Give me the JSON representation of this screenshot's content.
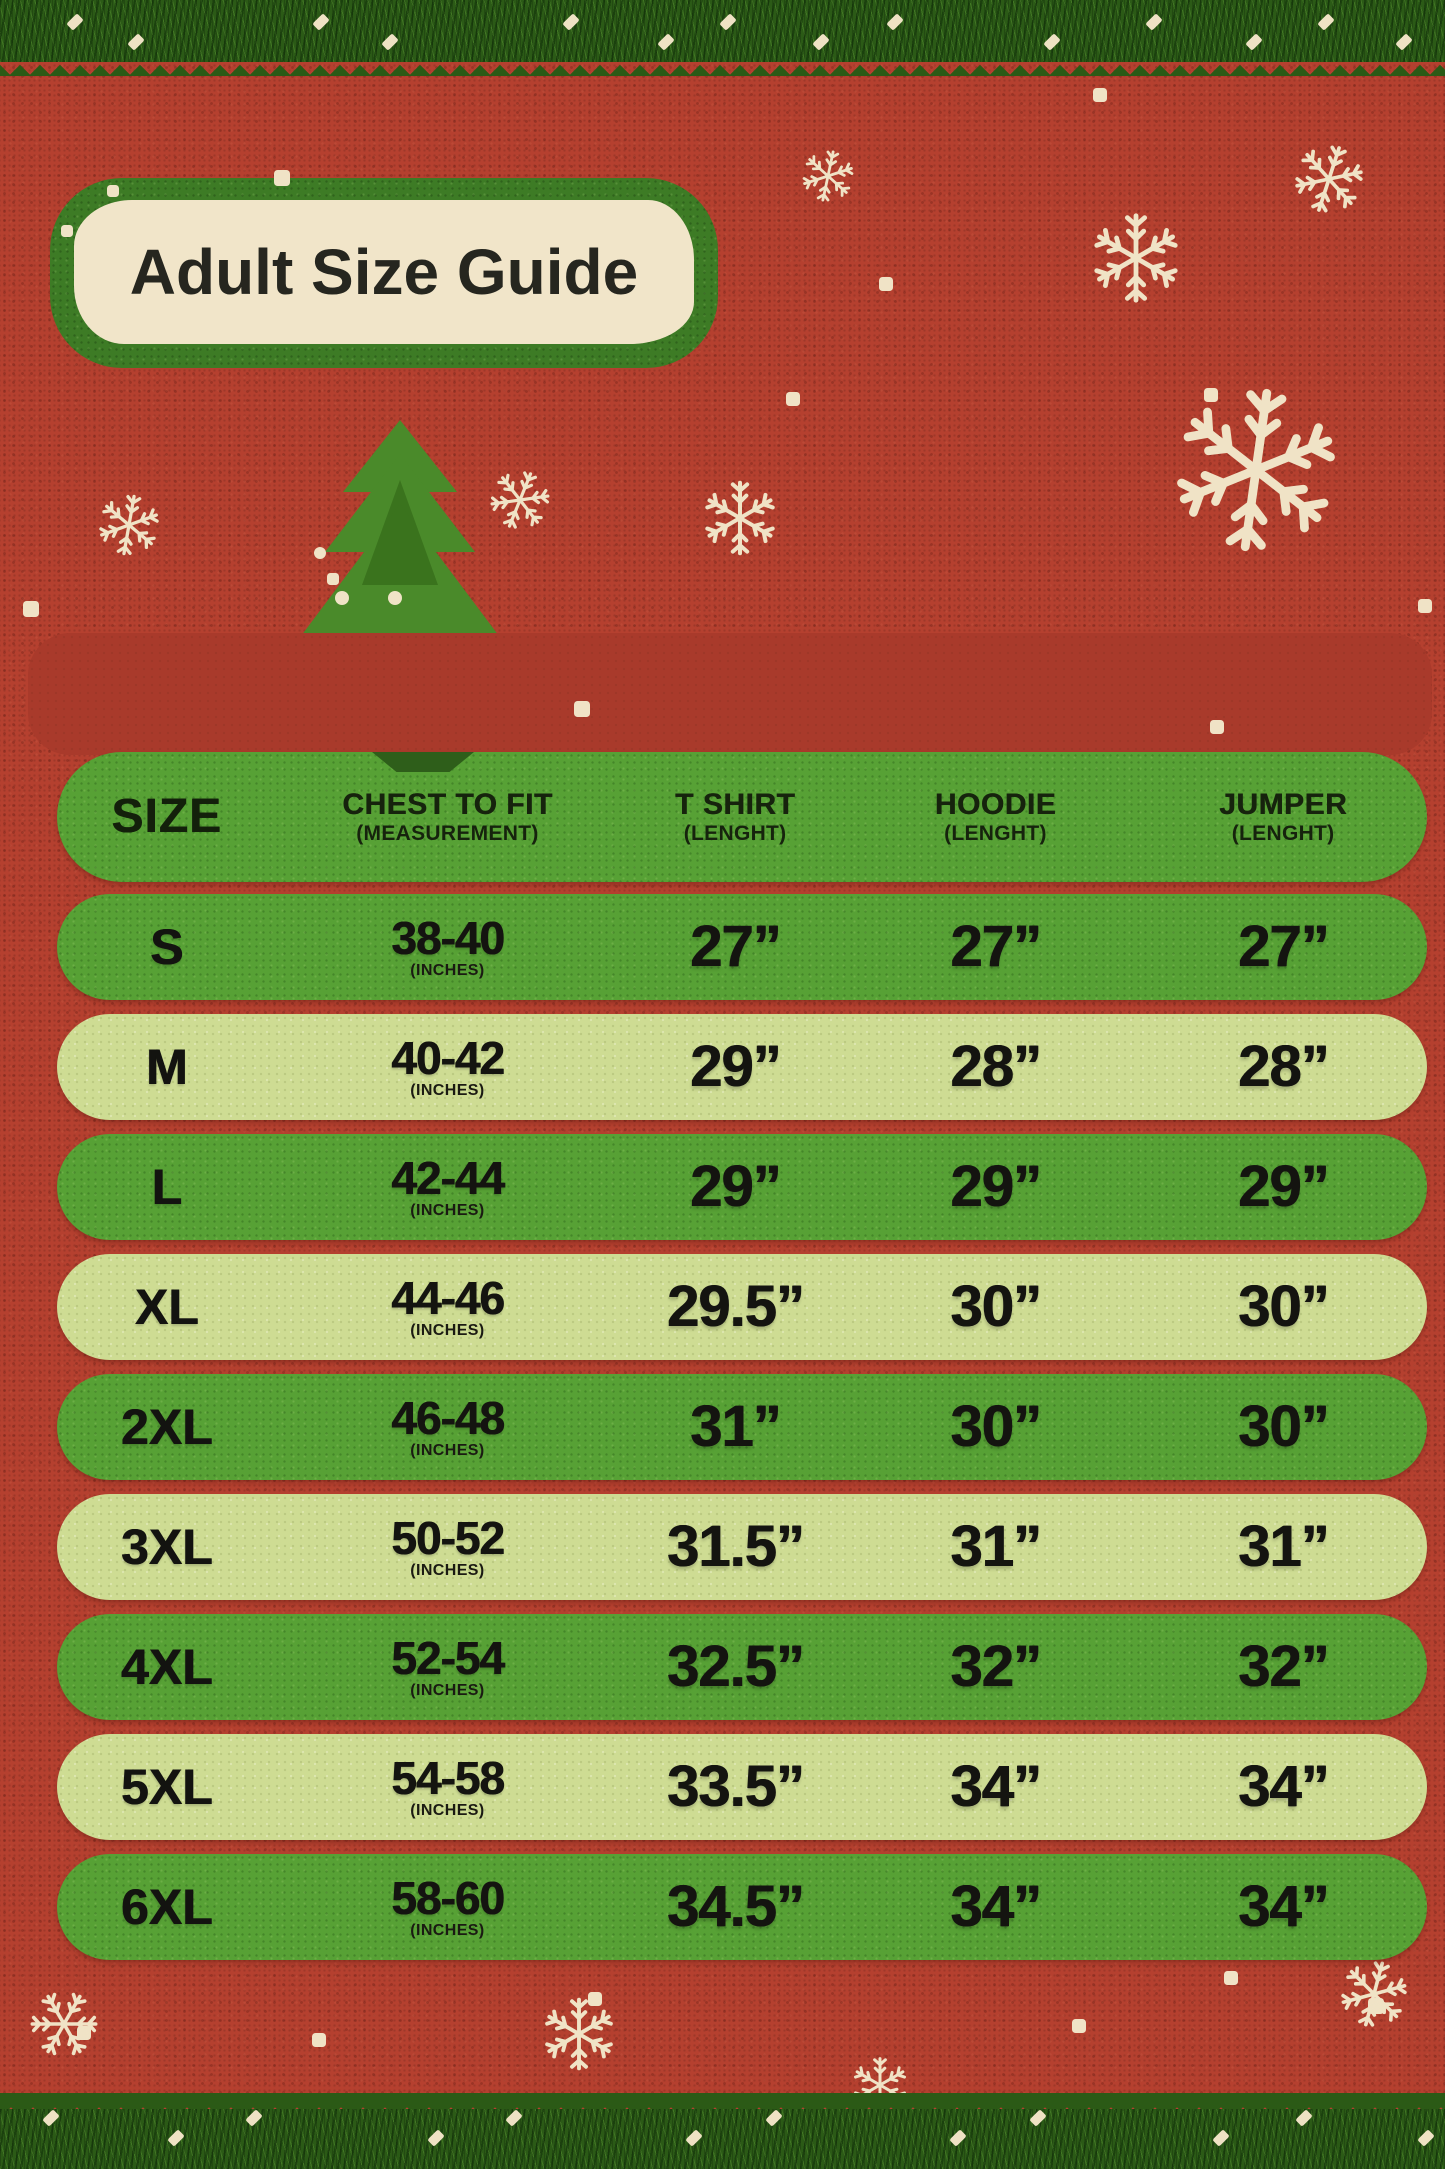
{
  "title": "Adult Size Guide",
  "table": {
    "header": {
      "size": "SIZE",
      "columns": [
        {
          "label": "CHEST TO FIT",
          "sub": "(MEASUREMENT)"
        },
        {
          "label": "T SHIRT",
          "sub": "(LENGHT)"
        },
        {
          "label": "HOODIE",
          "sub": "(LENGHT)"
        },
        {
          "label": "JUMPER",
          "sub": "(LENGHT)"
        }
      ]
    },
    "unit_note": "(INCHES)",
    "rows": [
      {
        "size": "S",
        "chest": "38-40",
        "tshirt": "27”",
        "hoodie": "27”",
        "jumper": "27”"
      },
      {
        "size": "M",
        "chest": "40-42",
        "tshirt": "29”",
        "hoodie": "28”",
        "jumper": "28”"
      },
      {
        "size": "L",
        "chest": "42-44",
        "tshirt": "29”",
        "hoodie": "29”",
        "jumper": "29”"
      },
      {
        "size": "XL",
        "chest": "44-46",
        "tshirt": "29.5”",
        "hoodie": "30”",
        "jumper": "30”"
      },
      {
        "size": "2XL",
        "chest": "46-48",
        "tshirt": "31”",
        "hoodie": "30”",
        "jumper": "30”"
      },
      {
        "size": "3XL",
        "chest": "50-52",
        "tshirt": "31.5”",
        "hoodie": "31”",
        "jumper": "31”"
      },
      {
        "size": "4XL",
        "chest": "52-54",
        "tshirt": "32.5”",
        "hoodie": "32”",
        "jumper": "32”"
      },
      {
        "size": "5XL",
        "chest": "54-58",
        "tshirt": "33.5”",
        "hoodie": "34”",
        "jumper": "34”"
      },
      {
        "size": "6XL",
        "chest": "58-60",
        "tshirt": "34.5”",
        "hoodie": "34”",
        "jumper": "34”"
      }
    ]
  },
  "chart_data": {
    "type": "table",
    "title": "Adult Size Guide",
    "columns": [
      "SIZE",
      "CHEST TO FIT (MEASUREMENT, INCHES)",
      "T SHIRT (LENGHT)",
      "HOODIE (LENGHT)",
      "JUMPER (LENGHT)"
    ],
    "rows": [
      [
        "S",
        "38-40",
        "27”",
        "27”",
        "27”"
      ],
      [
        "M",
        "40-42",
        "29”",
        "28”",
        "28”"
      ],
      [
        "L",
        "42-44",
        "29”",
        "29”",
        "29”"
      ],
      [
        "XL",
        "44-46",
        "29.5”",
        "30”",
        "30”"
      ],
      [
        "2XL",
        "46-48",
        "31”",
        "30”",
        "30”"
      ],
      [
        "3XL",
        "50-52",
        "31.5”",
        "31”",
        "31”"
      ],
      [
        "4XL",
        "52-54",
        "32.5”",
        "32”",
        "32”"
      ],
      [
        "5XL",
        "54-58",
        "33.5”",
        "34”",
        "34”"
      ],
      [
        "6XL",
        "58-60",
        "34.5”",
        "34”",
        "34”"
      ]
    ]
  },
  "colors": {
    "background_red": "#b5402f",
    "banner_red": "#a93a2b",
    "row_green": "#57a135",
    "row_light_green": "#cedc93",
    "badge_green": "#3d7b25",
    "garland_green": "#2b5a16",
    "snow_cream": "#f0e3c6",
    "text_dark": "#141410"
  }
}
